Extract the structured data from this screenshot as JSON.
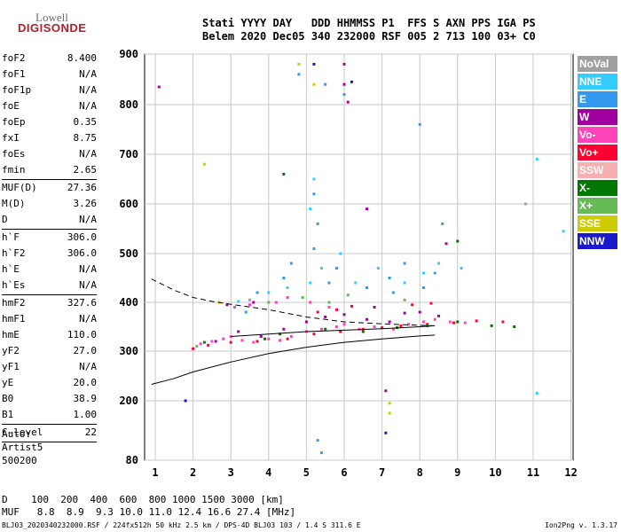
{
  "logo": {
    "line1": "Lowell",
    "line2": "DIGISONDE"
  },
  "header": {
    "line1": "Stati YYYY DAY   DDD HHMMSS P1  FFS S AXN PPS IGA PS",
    "line2": "Belem 2020 Dec05 340 232000 RSF 005 2 713 100 03+ C0"
  },
  "params": [
    {
      "label": "foF2",
      "value": "8.400"
    },
    {
      "label": "foF1",
      "value": "N/A"
    },
    {
      "label": "foF1p",
      "value": "N/A"
    },
    {
      "label": "foE",
      "value": "N/A"
    },
    {
      "label": "foEp",
      "value": "0.35"
    },
    {
      "label": "fxI",
      "value": "8.75"
    },
    {
      "label": "foEs",
      "value": "N/A"
    },
    {
      "label": "fmin",
      "value": "2.65",
      "sep": true
    },
    {
      "label": "MUF(D)",
      "value": "27.36"
    },
    {
      "label": "M(D)",
      "value": "3.26"
    },
    {
      "label": "D",
      "value": "N/A",
      "sep": true
    },
    {
      "label": "h`F",
      "value": "306.0"
    },
    {
      "label": "h`F2",
      "value": "306.0"
    },
    {
      "label": "h`E",
      "value": "N/A"
    },
    {
      "label": "h`Es",
      "value": "N/A",
      "sep": true
    },
    {
      "label": "hmF2",
      "value": "327.6"
    },
    {
      "label": "hmF1",
      "value": "N/A"
    },
    {
      "label": "hmE",
      "value": "110.0"
    },
    {
      "label": "yF2",
      "value": "27.0"
    },
    {
      "label": "yF1",
      "value": "N/A"
    },
    {
      "label": "yE",
      "value": "20.0"
    },
    {
      "label": "B0",
      "value": "38.9"
    },
    {
      "label": "B1",
      "value": "1.00",
      "sep": true
    },
    {
      "label": "C-level",
      "value": "22",
      "sep": true
    }
  ],
  "auto": {
    "line1": "Auto:",
    "line2": "Artist5",
    "line3": "500200"
  },
  "legend": [
    {
      "label": "NoVal",
      "color": "#a0a0a0"
    },
    {
      "label": "NNE",
      "color": "#33ccff"
    },
    {
      "label": "E",
      "color": "#3399ee"
    },
    {
      "label": "W",
      "color": "#a000a0"
    },
    {
      "label": "Vo-",
      "color": "#ff44bb"
    },
    {
      "label": "Vo+",
      "color": "#ff0033"
    },
    {
      "label": "SSW",
      "color": "#f6b0b0"
    },
    {
      "label": "X-",
      "color": "#007700"
    },
    {
      "label": "X+",
      "color": "#66bb55"
    },
    {
      "label": "SSE",
      "color": "#cccc00"
    },
    {
      "label": "NNW",
      "color": "#1a1acc"
    }
  ],
  "bottom": {
    "d_row": "D    100  200  400  600  800 1000 1500 3000 [km]",
    "muf_row": "MUF   8.8  8.9  9.3 10.0 11.0 12.4 16.6 27.4 [MHz]",
    "footer": "BLJ03_2020340232000.RSF / 224fx512h 50 kHz 2.5 km / DPS-4D BLJ03 103 / 1.4 S 311.6 E",
    "version": "Ion2Png v. 1.3.17"
  },
  "chart_data": {
    "type": "scatter",
    "x_ticks": [
      1,
      2,
      3,
      4,
      5,
      6,
      7,
      8,
      9,
      10,
      11,
      12
    ],
    "y_ticks": [
      80,
      200,
      300,
      400,
      500,
      600,
      700,
      800,
      900
    ],
    "xlim": [
      0.9,
      12.0
    ],
    "ylim": [
      80,
      900
    ],
    "grid": true,
    "series": [
      {
        "color": "#ff44bb",
        "points": [
          [
            2.2,
            315
          ],
          [
            2.5,
            320
          ],
          [
            2.8,
            325
          ],
          [
            3.0,
            330
          ],
          [
            3.3,
            322
          ],
          [
            3.6,
            318
          ],
          [
            4.0,
            325
          ],
          [
            4.3,
            322
          ],
          [
            4.6,
            330
          ],
          [
            5.0,
            340
          ],
          [
            5.4,
            345
          ],
          [
            5.8,
            350
          ],
          [
            6.0,
            355
          ],
          [
            6.4,
            345
          ],
          [
            6.8,
            350
          ],
          [
            7.3,
            345
          ],
          [
            7.7,
            355
          ],
          [
            8.1,
            360
          ],
          [
            8.4,
            365
          ],
          [
            8.8,
            360
          ],
          [
            9.2,
            358
          ],
          [
            3.1,
            390
          ],
          [
            3.5,
            395
          ],
          [
            4.2,
            400
          ],
          [
            4.5,
            410
          ],
          [
            5.1,
            400
          ],
          [
            5.6,
            390
          ]
        ]
      },
      {
        "color": "#a000a0",
        "points": [
          [
            2.6,
            320
          ],
          [
            3.2,
            340
          ],
          [
            3.8,
            330
          ],
          [
            4.4,
            345
          ],
          [
            5.0,
            360
          ],
          [
            5.5,
            370
          ],
          [
            6.0,
            375
          ],
          [
            6.6,
            365
          ],
          [
            7.2,
            360
          ],
          [
            7.6,
            378
          ],
          [
            8.0,
            380
          ],
          [
            8.5,
            372
          ],
          [
            2.9,
            395
          ],
          [
            3.6,
            400
          ],
          [
            6.0,
            840
          ],
          [
            6.0,
            880
          ],
          [
            6.1,
            805
          ],
          [
            6.6,
            590
          ],
          [
            6.8,
            390
          ],
          [
            7.1,
            220
          ],
          [
            8.7,
            520
          ],
          [
            1.1,
            835
          ]
        ]
      },
      {
        "color": "#ff0033",
        "points": [
          [
            2.0,
            305
          ],
          [
            2.4,
            312
          ],
          [
            3.0,
            318
          ],
          [
            3.7,
            320
          ],
          [
            4.5,
            325
          ],
          [
            5.2,
            335
          ],
          [
            5.9,
            340
          ],
          [
            6.5,
            345
          ],
          [
            7.0,
            348
          ],
          [
            7.5,
            352
          ],
          [
            8.2,
            355
          ],
          [
            8.9,
            358
          ],
          [
            9.5,
            362
          ],
          [
            10.2,
            360
          ],
          [
            5.3,
            380
          ],
          [
            5.8,
            385
          ],
          [
            6.2,
            392
          ],
          [
            7.8,
            395
          ],
          [
            8.3,
            398
          ]
        ]
      },
      {
        "color": "#3399ee",
        "points": [
          [
            3.4,
            380
          ],
          [
            3.7,
            420
          ],
          [
            4.4,
            450
          ],
          [
            4.6,
            480
          ],
          [
            5.2,
            620
          ],
          [
            5.3,
            560
          ],
          [
            5.2,
            510
          ],
          [
            5.6,
            440
          ],
          [
            5.8,
            470
          ],
          [
            6.6,
            430
          ],
          [
            7.2,
            450
          ],
          [
            7.6,
            480
          ],
          [
            8.1,
            430
          ],
          [
            8.6,
            560
          ],
          [
            5.3,
            120
          ],
          [
            5.4,
            95
          ],
          [
            4.8,
            860
          ],
          [
            5.5,
            840
          ],
          [
            7.3,
            420
          ],
          [
            6.0,
            820
          ],
          [
            8.4,
            460
          ],
          [
            8.0,
            760
          ]
        ]
      },
      {
        "color": "#33ccff",
        "points": [
          [
            3.2,
            402
          ],
          [
            4.0,
            420
          ],
          [
            4.5,
            430
          ],
          [
            5.1,
            440
          ],
          [
            5.4,
            470
          ],
          [
            5.9,
            500
          ],
          [
            6.3,
            440
          ],
          [
            6.9,
            470
          ],
          [
            7.6,
            440
          ],
          [
            8.1,
            460
          ],
          [
            8.5,
            480
          ],
          [
            9.1,
            470
          ],
          [
            11.1,
            690
          ],
          [
            11.8,
            545
          ],
          [
            11.1,
            215
          ],
          [
            5.1,
            590
          ],
          [
            5.2,
            650
          ]
        ]
      },
      {
        "color": "#007700",
        "points": [
          [
            2.3,
            318
          ],
          [
            3.9,
            325
          ],
          [
            4.3,
            335
          ],
          [
            5.5,
            345
          ],
          [
            6.5,
            340
          ],
          [
            7.4,
            348
          ],
          [
            8.2,
            352
          ],
          [
            9.0,
            360
          ],
          [
            9.9,
            352
          ],
          [
            10.5,
            350
          ],
          [
            4.4,
            660
          ],
          [
            9.0,
            525
          ]
        ]
      },
      {
        "color": "#66bb55",
        "points": [
          [
            2.1,
            310
          ],
          [
            4.0,
            400
          ],
          [
            4.9,
            410
          ],
          [
            5.6,
            400
          ],
          [
            6.1,
            415
          ],
          [
            7.6,
            405
          ]
        ]
      },
      {
        "color": "#cccc00",
        "points": [
          [
            2.7,
            400
          ],
          [
            4.8,
            880
          ],
          [
            7.2,
            195
          ],
          [
            7.2,
            175
          ],
          [
            5.2,
            840
          ],
          [
            2.3,
            680
          ]
        ]
      },
      {
        "color": "#1a1acc",
        "points": [
          [
            1.8,
            200
          ],
          [
            5.2,
            880
          ],
          [
            7.1,
            135
          ],
          [
            6.2,
            845
          ]
        ]
      },
      {
        "color": "#a0a0a0",
        "points": [
          [
            3.5,
            405
          ],
          [
            10.8,
            600
          ]
        ]
      }
    ],
    "curves": [
      {
        "style": "solid",
        "points": [
          [
            0.9,
            233
          ],
          [
            1.5,
            245
          ],
          [
            2.0,
            258
          ],
          [
            3.0,
            278
          ],
          [
            4.0,
            295
          ],
          [
            5.0,
            308
          ],
          [
            6.0,
            318
          ],
          [
            7.0,
            325
          ],
          [
            8.0,
            331
          ],
          [
            8.4,
            333
          ]
        ]
      },
      {
        "style": "dashed",
        "points": [
          [
            0.9,
            448
          ],
          [
            1.5,
            425
          ],
          [
            2.0,
            410
          ],
          [
            2.5,
            402
          ],
          [
            3.0,
            396
          ],
          [
            4.0,
            385
          ],
          [
            5.0,
            370
          ],
          [
            6.0,
            360
          ],
          [
            7.0,
            356
          ],
          [
            8.0,
            353
          ],
          [
            8.4,
            352
          ]
        ]
      },
      {
        "style": "solid",
        "points": [
          [
            3.0,
            330
          ],
          [
            4.0,
            335
          ],
          [
            5.0,
            340
          ],
          [
            6.0,
            343
          ],
          [
            7.0,
            346
          ],
          [
            8.0,
            350
          ],
          [
            8.4,
            352
          ]
        ]
      }
    ]
  }
}
